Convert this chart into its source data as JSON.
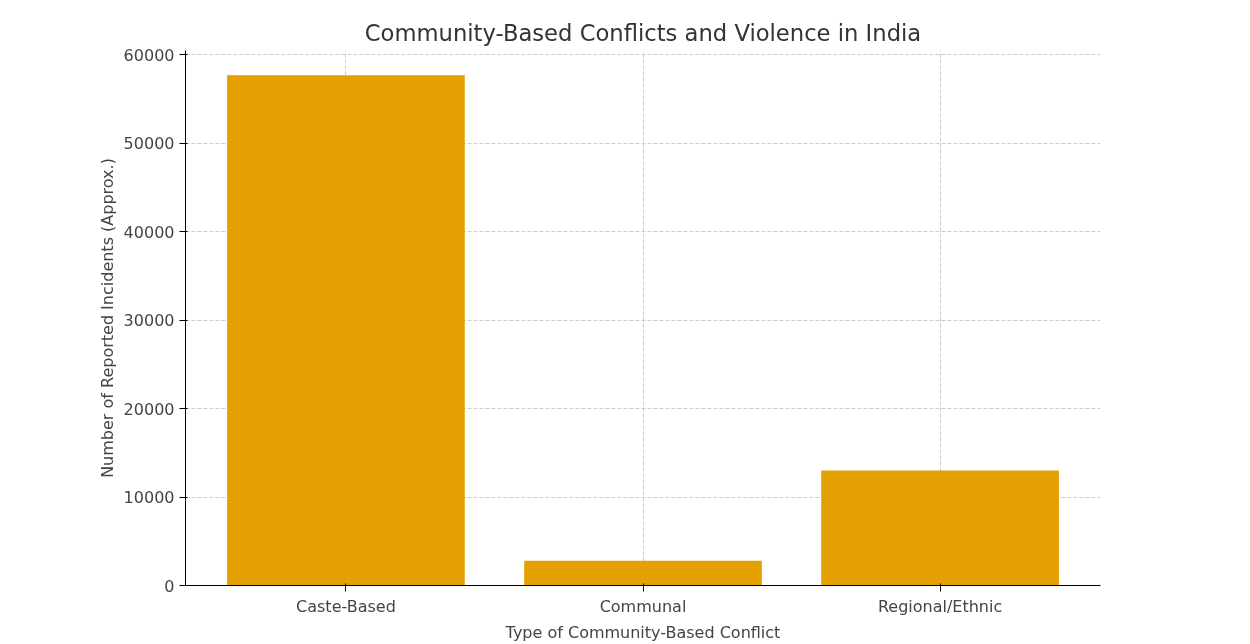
{
  "chart_data": {
    "type": "bar",
    "title": "Community-Based Conflicts and Violence in India",
    "xlabel": "Type of Community-Based Conflict",
    "ylabel": "Number of Reported Incidents (Approx.)",
    "categories": [
      "Caste-Based",
      "Communal",
      "Regional/Ethnic"
    ],
    "values": [
      57700,
      2800,
      13000
    ],
    "color": "#e3a000",
    "ylim": [
      0,
      60500
    ],
    "yticks": [
      0,
      10000,
      20000,
      30000,
      40000,
      50000,
      60000
    ],
    "grid": true
  }
}
